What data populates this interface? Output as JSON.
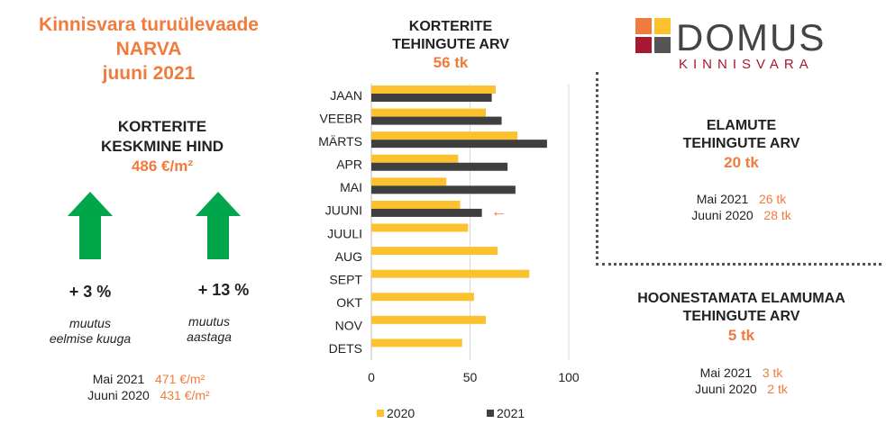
{
  "header": {
    "title_line1": "Kinnisvara turuülevaade",
    "title_line2": "NARVA",
    "title_line3": "juuni 2021"
  },
  "price": {
    "label_line1": "KORTERITE",
    "label_line2": "KESKMINE HIND",
    "value": "486 €/m²",
    "monthly_change": "+ 3 %",
    "monthly_desc_line1": "muutus",
    "monthly_desc_line2": "eelmise kuuga",
    "yearly_change": "+ 13 %",
    "yearly_desc_line1": "muutus",
    "yearly_desc_line2": "aastaga",
    "hist": [
      {
        "label": "Mai 2021",
        "value": "471 €/m²"
      },
      {
        "label": "Juuni 2020",
        "value": "431 €/m²"
      }
    ],
    "arrow_color": "#00a74a"
  },
  "chart_header": {
    "line1": "KORTERITE",
    "line2": "TEHINGUTE ARV",
    "value": "56 tk"
  },
  "chart_data": {
    "type": "bar",
    "orientation": "horizontal",
    "categories": [
      "JAAN",
      "VEEBR",
      "MÄRTS",
      "APR",
      "MAI",
      "JUUNI",
      "JUULI",
      "AUG",
      "SEPT",
      "OKT",
      "NOV",
      "DETS"
    ],
    "series": [
      {
        "name": "2020",
        "color": "#fcc12f",
        "values": [
          63,
          58,
          74,
          44,
          38,
          45,
          49,
          64,
          80,
          52,
          58,
          46
        ]
      },
      {
        "name": "2021",
        "color": "#3f3f3f",
        "values": [
          61,
          66,
          89,
          69,
          73,
          56,
          null,
          null,
          null,
          null,
          null,
          null
        ]
      }
    ],
    "xlim": [
      0,
      100
    ],
    "xticks": [
      0,
      50,
      100
    ],
    "grid": true,
    "legend": "bottom",
    "annotation": {
      "text": "←",
      "category": "JUUNI",
      "color": "#f07b3c"
    }
  },
  "logo": {
    "name": "DOMUS",
    "sub": "KINNISVARA",
    "colors": [
      "#f07b3c",
      "#fcc12f",
      "#a6192e",
      "#555555"
    ]
  },
  "houses": {
    "title_line1": "ELAMUTE",
    "title_line2": "TEHINGUTE ARV",
    "value": "20 tk",
    "hist": [
      {
        "label": "Mai 2021",
        "value": "26 tk"
      },
      {
        "label": "Juuni 2020",
        "value": "28 tk"
      }
    ]
  },
  "land": {
    "title_line1": "HOONESTAMATA ELAMUMAA",
    "title_line2": "TEHINGUTE ARV",
    "value": "5 tk",
    "hist": [
      {
        "label": "Mai 2021",
        "value": "3 tk"
      },
      {
        "label": "Juuni 2020",
        "value": "2 tk"
      }
    ]
  }
}
